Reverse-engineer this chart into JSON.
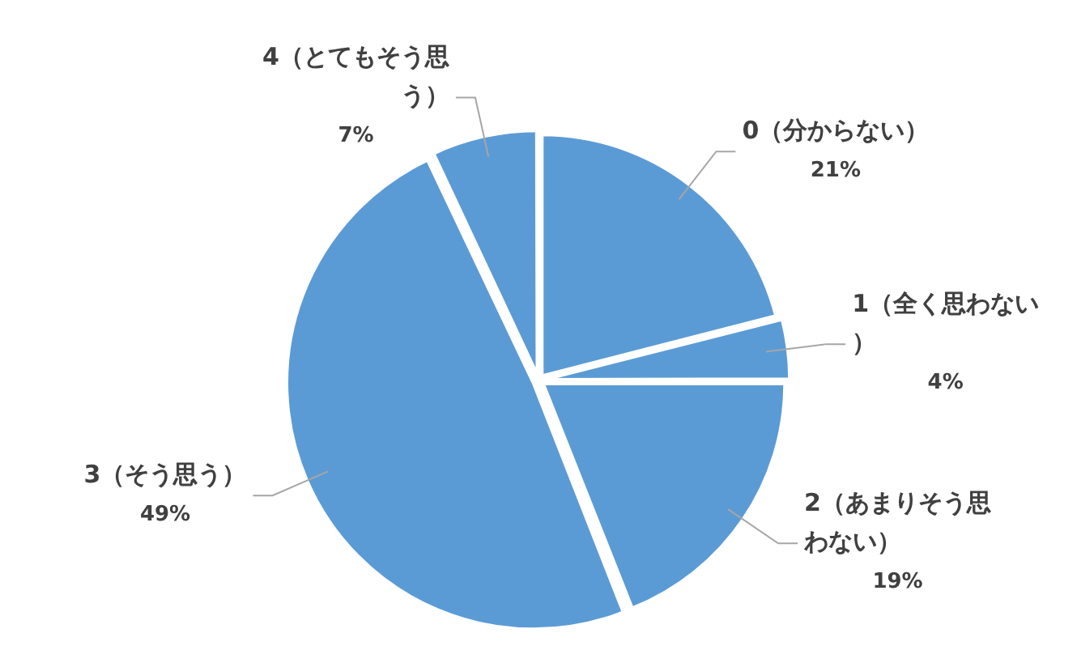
{
  "chart_data": {
    "type": "pie",
    "categories": [
      "0（分からない）",
      "1（全く思わない）",
      "2（あまりそう思わない）",
      "3（そう思う）",
      "4（とてもそう思う）"
    ],
    "values": [
      21,
      4,
      19,
      49,
      7
    ],
    "colors": [
      "#5b9bd5",
      "#5b9bd5",
      "#5b9bd5",
      "#5b9bd5",
      "#5b9bd5"
    ],
    "value_labels": [
      "21%",
      "4%",
      "19%",
      "49%",
      "7%"
    ],
    "legend": false
  }
}
